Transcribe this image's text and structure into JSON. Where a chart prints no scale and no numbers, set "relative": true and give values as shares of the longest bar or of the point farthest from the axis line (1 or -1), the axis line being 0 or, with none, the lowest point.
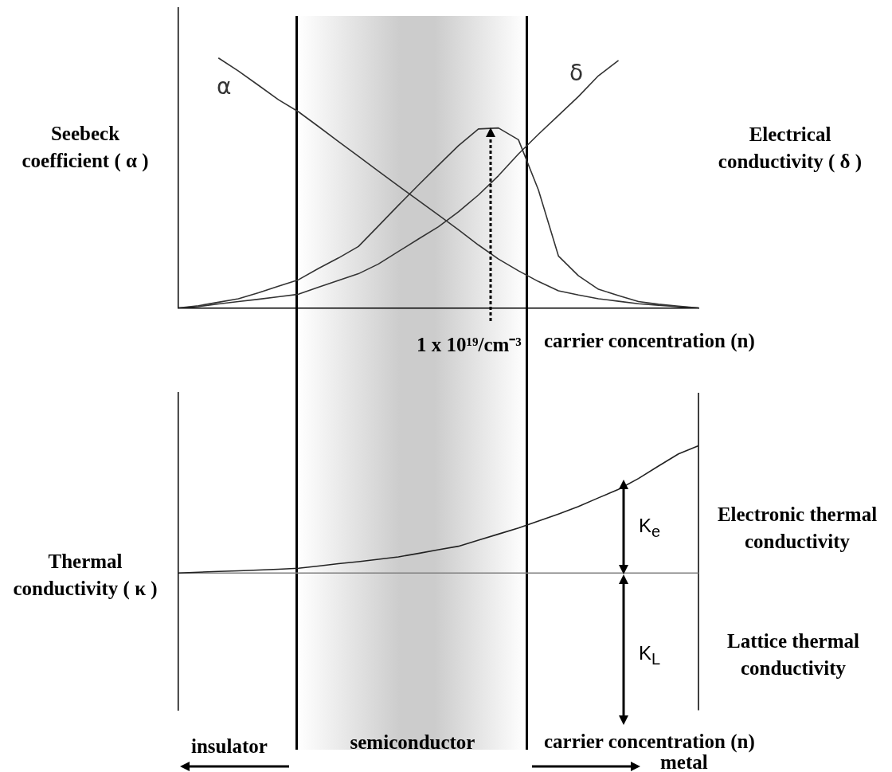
{
  "chart_data": [
    {
      "type": "line",
      "relative": true,
      "ylabel": "Seebeck coefficient ( α )",
      "y2label": "Electrical conductivity ( δ )",
      "xlabel": "carrier concentration (n)",
      "categories": [
        null,
        null,
        null,
        null,
        null,
        null,
        null,
        null,
        null,
        null,
        null,
        null,
        null,
        null,
        null,
        null,
        null,
        null,
        null,
        null,
        null,
        null,
        null,
        null,
        null,
        null,
        null
      ],
      "series": [
        {
          "name": "α",
          "color": "#333333",
          "values": [
            null,
            null,
            1,
            0.948,
            0.891,
            0.833,
            0.785,
            0.726,
            0.666,
            0.607,
            0.547,
            0.488,
            0.43,
            0.372,
            0.313,
            0.252,
            0.196,
            0.149,
            0.106,
            0.069,
            0.052,
            0.037,
            0.027,
            0.017,
            0.011,
            0.005,
            0
          ]
        },
        {
          "name": "δ",
          "color": "#333333",
          "values": [
            0,
            0.006,
            0.016,
            0.026,
            0.035,
            0.045,
            0.055,
            0.083,
            0.11,
            0.137,
            0.176,
            0.226,
            0.276,
            0.325,
            0.385,
            0.452,
            0.529,
            0.616,
            0.695,
            0.77,
            0.846,
            0.929,
            0.99,
            null,
            null,
            null,
            null
          ]
        },
        {
          "color": "#333333",
          "values": [
            0,
            0.009,
            0.023,
            0.037,
            0.061,
            0.087,
            0.113,
            0.158,
            0.2,
            0.246,
            0.328,
            0.411,
            0.492,
            0.571,
            0.649,
            0.716,
            0.72,
            0.673,
            0.472,
            0.208,
            0.129,
            0.075,
            0.05,
            0.026,
            0.015,
            0.007,
            0
          ]
        }
      ],
      "annotations": [
        "1 x 10¹⁹/cm⁻³"
      ]
    },
    {
      "type": "line",
      "relative": true,
      "ylabel": "Thermal conductivity ( κ )",
      "xlabel": "carrier concentration (n)",
      "categories": [
        null,
        null,
        null,
        null,
        null,
        null,
        null,
        null,
        null,
        null,
        null,
        null,
        null,
        null,
        null,
        null,
        null,
        null,
        null,
        null,
        null,
        null,
        null,
        null,
        null,
        null,
        null
      ],
      "series": [
        {
          "color": "#222222",
          "values": [
            0.519,
            0.522,
            0.525,
            0.527,
            0.53,
            0.533,
            0.537,
            0.545,
            0.554,
            0.562,
            0.571,
            0.58,
            0.593,
            0.607,
            0.62,
            0.643,
            0.666,
            0.689,
            0.715,
            0.742,
            0.77,
            0.803,
            0.835,
            0.876,
            0.923,
            0.969,
            1
          ]
        },
        {
          "color": "#808080",
          "values": [
            0.519,
            0.519,
            0.519,
            0.519,
            0.519,
            0.519,
            0.519,
            0.519,
            0.519,
            0.519,
            0.519,
            0.519,
            0.519,
            0.519,
            0.519,
            0.519,
            0.519,
            0.519,
            0.519,
            0.519,
            0.519,
            0.519,
            0.519,
            0.519,
            0.519,
            0.519,
            0.519
          ]
        }
      ],
      "annotations": [
        "K$_{e}$",
        "K$_{L}$",
        "Electronic thermal conductivity",
        "Lattice thermal conductivity",
        "semiconductor",
        "insulator",
        "metal"
      ]
    }
  ]
}
